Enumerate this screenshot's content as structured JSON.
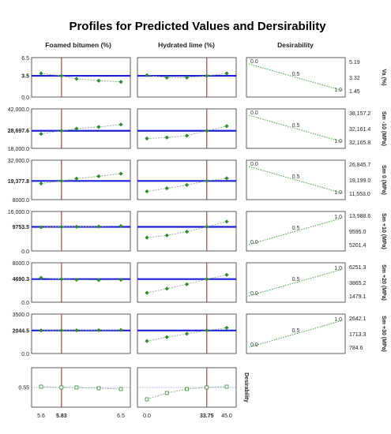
{
  "title": "Profiles for Predicted Values and Dersirability",
  "columns": [
    "Foamed bitumen (%)",
    "Hydrated lime (%)",
    "Desirability"
  ],
  "desirability_label": "Desirability",
  "colors": {
    "profile": "#8aa88a",
    "marker": "#2e8b2e",
    "current_value": "#1f1fd6",
    "current_setting": "#d62020",
    "desirability": "#3aa83a"
  },
  "chart_data": {
    "type": "line",
    "factors": [
      {
        "name": "Foamed bitumen (%)",
        "x": [
          5.6,
          5.83,
          6.0,
          6.25,
          6.5
        ],
        "current": 5.83,
        "ticks": [
          "5.6",
          "5.83",
          "6.5"
        ]
      },
      {
        "name": "Hydrated lime (%)",
        "x": [
          0.0,
          11.25,
          22.5,
          33.75,
          45.0
        ],
        "current": 33.75,
        "ticks": [
          "0.0",
          "33.75",
          "45.0"
        ]
      }
    ],
    "responses": [
      {
        "name": "Va (%)",
        "ylabel": "Va (%)",
        "ylim": [
          0,
          6.5
        ],
        "yticks": [
          "6.5",
          "3.5",
          "0.0"
        ],
        "current": "3.5",
        "profiles": [
          [
            3.9,
            3.5,
            3.0,
            2.7,
            2.5
          ],
          [
            3.6,
            3.2,
            3.2,
            3.5,
            3.9
          ]
        ],
        "desirability": {
          "type": "min",
          "values": [
            "5.19",
            "3.32",
            "1.45"
          ],
          "labels": [
            "0.0",
            "0.5",
            "1.0"
          ]
        }
      },
      {
        "name": "Sm -10 (MPa)",
        "ylabel": "Sm -10 (MPa)",
        "ylim": [
          18000,
          42000
        ],
        "yticks": [
          "42,000.0",
          "28,697.6",
          "18,000.0"
        ],
        "current": "28,697.6",
        "profiles": [
          [
            26800,
            28697.6,
            30000,
            31000,
            32500
          ],
          [
            24000,
            24600,
            25700,
            28697.6,
            31500
          ]
        ],
        "desirability": {
          "type": "min",
          "values": [
            "38,157.2",
            "32,161.4",
            "32,165.8"
          ],
          "labels": [
            "0.0",
            "0.5",
            "1.0"
          ]
        }
      },
      {
        "name": "Sm 0 (MPa)",
        "ylabel": "Sm 0 (MPa)",
        "ylim": [
          8000,
          32000
        ],
        "yticks": [
          "32,000.0",
          "19,377.8",
          "8000.0"
        ],
        "current": "19,377.8",
        "profiles": [
          [
            17800,
            19377.8,
            20800,
            22200,
            23800
          ],
          [
            13000,
            14900,
            16900,
            19377.8,
            21000
          ]
        ],
        "desirability": {
          "type": "min",
          "values": [
            "26,845.7",
            "19,199.0",
            "11,553.0"
          ],
          "labels": [
            "0.0",
            "0.5",
            "1.0"
          ]
        }
      },
      {
        "name": "Sm +10 (MPa)",
        "ylabel": "Sm +10 (MPa)",
        "ylim": [
          0,
          16000
        ],
        "yticks": [
          "16,000.0",
          "9753.5",
          "0.0"
        ],
        "current": "9753.5",
        "profiles": [
          [
            9600,
            9753.5,
            9800,
            9900,
            10100
          ],
          [
            5400,
            6300,
            7800,
            9753.5,
            11900
          ]
        ],
        "desirability": {
          "type": "max",
          "values": [
            "13,988.6",
            "9595.0",
            "5201.4"
          ],
          "labels": [
            "0.0",
            "0.5",
            "1.0"
          ]
        }
      },
      {
        "name": "Sm +20 (MPa)",
        "ylabel": "Sm +20 (MPa)",
        "ylim": [
          0,
          8000
        ],
        "yticks": [
          "8000.0",
          "4690.3",
          "0.0"
        ],
        "current": "4690.3",
        "profiles": [
          [
            4950,
            4690.3,
            4550,
            4500,
            4550
          ],
          [
            1900,
            2750,
            3650,
            4690.3,
            5550
          ]
        ],
        "desirability": {
          "type": "max",
          "values": [
            "6251.3",
            "3865.2",
            "1479.1"
          ],
          "labels": [
            "0.0",
            "0.5",
            "1.0"
          ]
        }
      },
      {
        "name": "Sm +30 (MPa)",
        "ylabel": "Sm +30 (MPa)",
        "ylim": [
          0,
          3500
        ],
        "yticks": [
          "3500.0",
          "2044.5",
          "0.0"
        ],
        "current": "2044.5",
        "profiles": [
          [
            2050,
            2044.5,
            2060,
            2070,
            2080
          ],
          [
            1100,
            1450,
            1750,
            2044.5,
            2280
          ]
        ],
        "desirability": {
          "type": "max",
          "values": [
            "2642.1",
            "1713.3",
            "784.6"
          ],
          "labels": [
            "0.0",
            "0.5",
            "1.0"
          ]
        }
      }
    ],
    "desirability_row": {
      "ylabel": "Desirability",
      "yticks": [
        "0.55"
      ],
      "current": 0.55,
      "ylim": [
        0.3,
        0.8
      ],
      "profiles": [
        [
          0.56,
          0.55,
          0.55,
          0.54,
          0.53
        ],
        [
          0.4,
          0.48,
          0.53,
          0.55,
          0.56
        ]
      ]
    }
  }
}
